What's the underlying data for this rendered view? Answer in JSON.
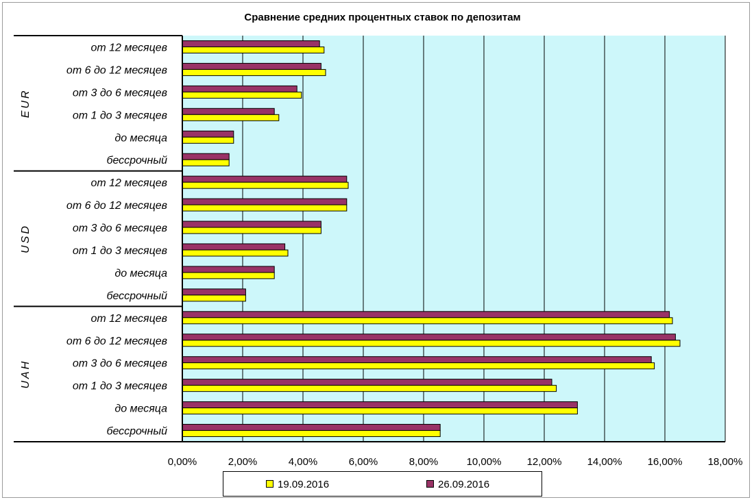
{
  "colors": {
    "plot_bg": "#cdf7fa",
    "series_1": "#ffff00",
    "series_2": "#993366",
    "gridline": "#000000"
  },
  "chart_data": {
    "type": "bar",
    "orientation": "horizontal",
    "title": "Сравнение средних процентных ставок по депозитам",
    "xlim": [
      0,
      18
    ],
    "x_ticks": [
      "0,00%",
      "2,00%",
      "4,00%",
      "6,00%",
      "8,00%",
      "10,00%",
      "12,00%",
      "14,00%",
      "16,00%",
      "18,00%"
    ],
    "grid": true,
    "legend_position": "bottom",
    "groups": [
      "EUR",
      "USD",
      "UAH"
    ],
    "categories": [
      "от 12 месяцев",
      "от 6 до 12 месяцев",
      "от 3 до 6 месяцев",
      "от 1 до 3 месяцев",
      "до месяца",
      "бессрочный"
    ],
    "series": [
      {
        "name": "19.09.2016",
        "values": {
          "EUR": [
            4.7,
            4.75,
            3.95,
            3.2,
            1.7,
            1.55
          ],
          "USD": [
            5.5,
            5.45,
            4.6,
            3.5,
            3.05,
            2.1
          ],
          "UAH": [
            16.25,
            16.5,
            15.65,
            12.4,
            13.1,
            8.55
          ]
        }
      },
      {
        "name": "26.09.2016",
        "values": {
          "EUR": [
            4.55,
            4.6,
            3.8,
            3.05,
            1.7,
            1.55
          ],
          "USD": [
            5.45,
            5.45,
            4.6,
            3.4,
            3.05,
            2.1
          ],
          "UAH": [
            16.15,
            16.35,
            15.55,
            12.25,
            13.1,
            8.55
          ]
        }
      }
    ]
  }
}
